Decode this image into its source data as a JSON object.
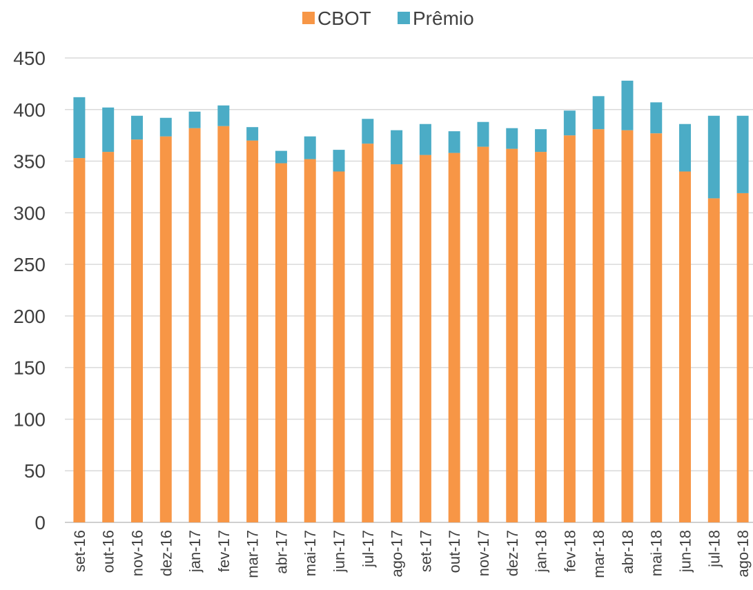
{
  "chart_data": {
    "type": "stacked_bar",
    "categories": [
      "set-16",
      "out-16",
      "nov-16",
      "dez-16",
      "jan-17",
      "fev-17",
      "mar-17",
      "abr-17",
      "mai-17",
      "jun-17",
      "jul-17",
      "ago-17",
      "set-17",
      "out-17",
      "nov-17",
      "dez-17",
      "jan-18",
      "fev-18",
      "mar-18",
      "abr-18",
      "mai-18",
      "jun-18",
      "jul-18",
      "ago-18"
    ],
    "series": [
      {
        "name": "CBOT",
        "color": "#f79646",
        "values": [
          353,
          359,
          371,
          374,
          382,
          384,
          370,
          348,
          352,
          340,
          367,
          347,
          356,
          358,
          364,
          362,
          359,
          375,
          381,
          380,
          377,
          340,
          314,
          319
        ]
      },
      {
        "name": "Prêmio",
        "color": "#4bacc6",
        "values": [
          59,
          43,
          23,
          18,
          16,
          20,
          13,
          12,
          22,
          21,
          24,
          33,
          30,
          21,
          24,
          20,
          22,
          24,
          32,
          48,
          30,
          46,
          80,
          75
        ]
      }
    ],
    "ylim": [
      0,
      450
    ],
    "yticks": [
      0,
      50,
      100,
      150,
      200,
      250,
      300,
      350,
      400,
      450
    ],
    "grid": true,
    "legend": "top"
  }
}
